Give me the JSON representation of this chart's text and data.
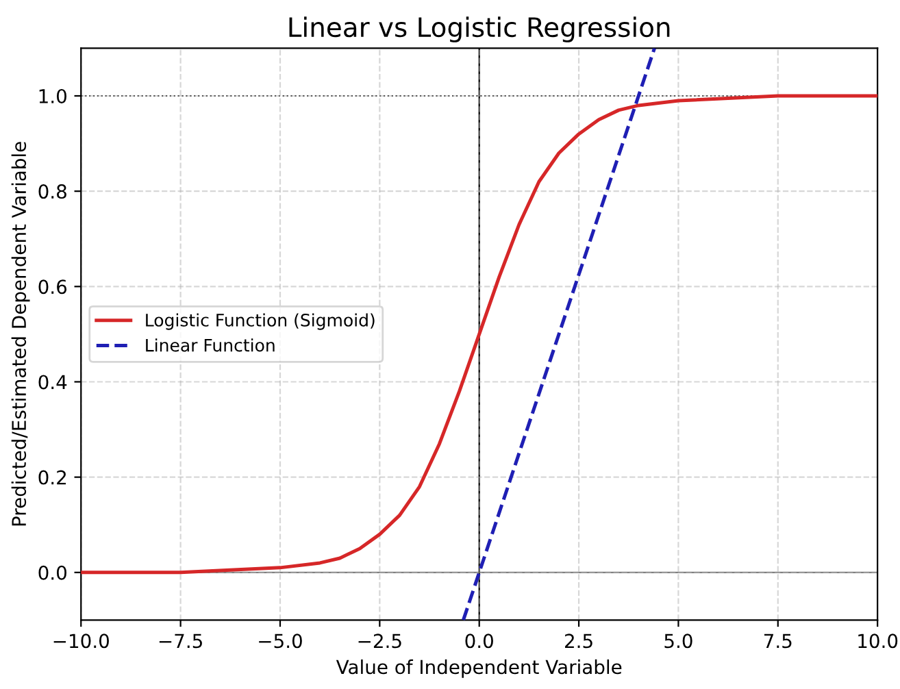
{
  "chart_data": {
    "type": "line",
    "title": "Linear vs Logistic Regression",
    "xlabel": "Value of Independent Variable",
    "ylabel": "Predicted/Estimated Dependent Variable",
    "series": [
      {
        "name": "Logistic Function (Sigmoid)",
        "color": "#d62728",
        "line_style": "solid",
        "x": [
          -10,
          -7.5,
          -5,
          -4,
          -3.5,
          -3,
          -2.5,
          -2,
          -1.5,
          -1,
          -0.5,
          0,
          0.5,
          1,
          1.5,
          2,
          2.5,
          3,
          3.5,
          4,
          5,
          7.5,
          10
        ],
        "values": [
          0.0,
          0.0,
          0.01,
          0.02,
          0.03,
          0.05,
          0.08,
          0.12,
          0.18,
          0.27,
          0.38,
          0.5,
          0.62,
          0.73,
          0.82,
          0.88,
          0.92,
          0.95,
          0.97,
          0.98,
          0.99,
          1.0,
          1.0
        ]
      },
      {
        "name": "Linear Function",
        "color": "#1f1fb4",
        "line_style": "dashed",
        "x": [
          -0.4,
          4.4
        ],
        "values": [
          -0.1,
          1.1
        ]
      }
    ],
    "xlim": [
      -10,
      10
    ],
    "ylim": [
      -0.1,
      1.1
    ],
    "xticks": [
      {
        "value": -10,
        "label": "−10.0"
      },
      {
        "value": -7.5,
        "label": "−7.5"
      },
      {
        "value": -5,
        "label": "−5.0"
      },
      {
        "value": -2.5,
        "label": "−2.5"
      },
      {
        "value": 0,
        "label": "0.0"
      },
      {
        "value": 2.5,
        "label": "2.5"
      },
      {
        "value": 5,
        "label": "5.0"
      },
      {
        "value": 7.5,
        "label": "7.5"
      },
      {
        "value": 10,
        "label": "10.0"
      }
    ],
    "yticks": [
      {
        "value": 0,
        "label": "0.0"
      },
      {
        "value": 0.2,
        "label": "0.2"
      },
      {
        "value": 0.4,
        "label": "0.4"
      },
      {
        "value": 0.6,
        "label": "0.6"
      },
      {
        "value": 0.8,
        "label": "0.8"
      },
      {
        "value": 1,
        "label": "1.0"
      }
    ],
    "ref_lines": [
      {
        "axis": "y",
        "value": 0,
        "color": "#808080",
        "line_style": "solid"
      },
      {
        "axis": "y",
        "value": 1,
        "color": "#000000",
        "line_style": "dotted"
      },
      {
        "axis": "x",
        "value": 0,
        "color": "#000000",
        "line_style": "solid"
      }
    ],
    "grid": true,
    "legend": "center left"
  }
}
